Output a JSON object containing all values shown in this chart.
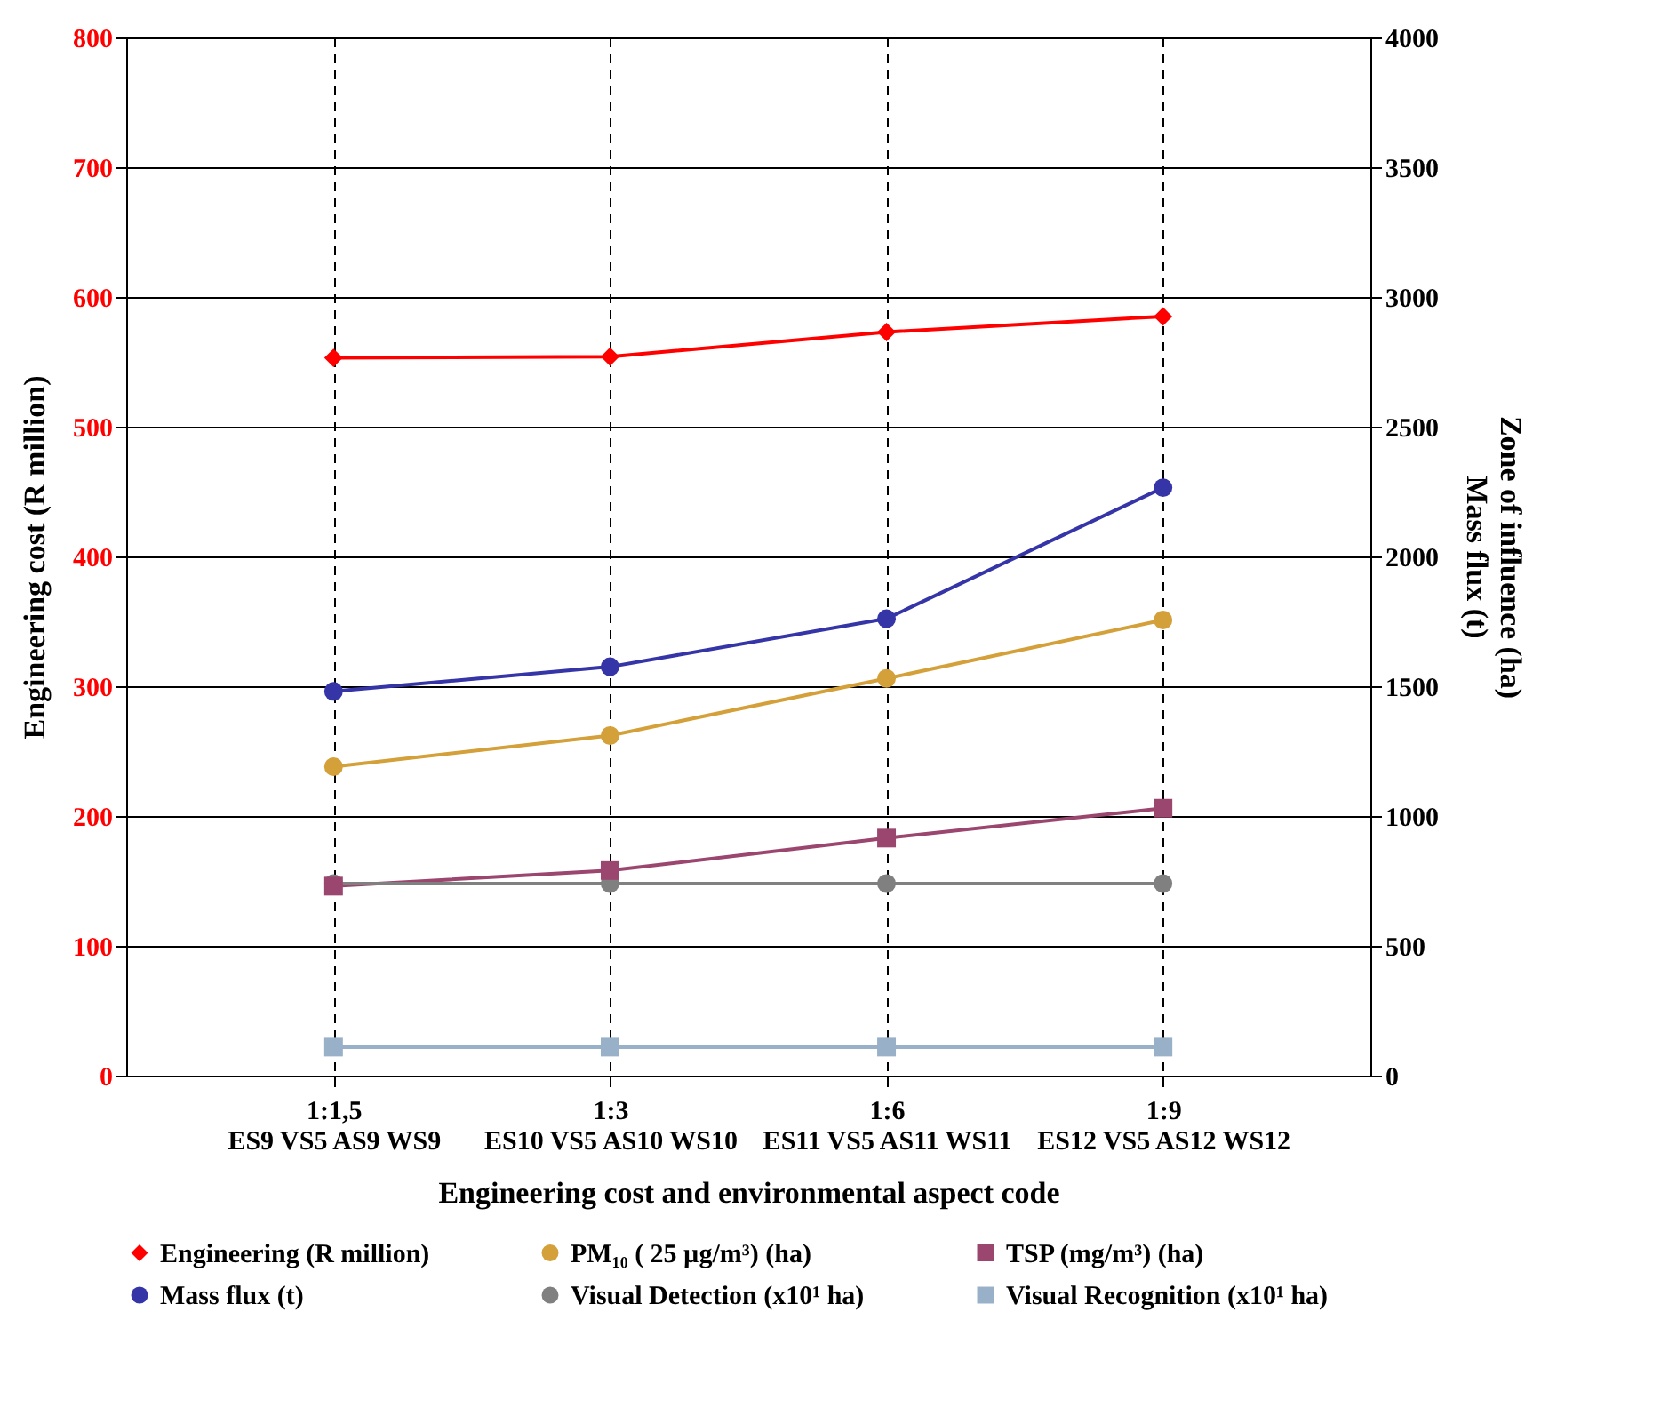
{
  "chart_data": {
    "type": "line",
    "xlabel": "Engineering cost and environmental aspect code",
    "ylabel": "Engineering cost (R million)",
    "y2label": "Zone of influence (ha)\nMass flux (t)",
    "categories": [
      "1:1,5\nES9 VS5 AS9 WS9",
      "1:3\nES10 VS5 AS10 WS10",
      "1:6\nES11 VS5 AS11 WS11",
      "1:9\nES12 VS5 AS12 WS12"
    ],
    "series": [
      {
        "name": "Engineering (R million)",
        "color": "#ff0000",
        "marker": "diamond",
        "values": [
          553,
          554,
          573,
          585
        ]
      },
      {
        "name": "PM₁₀ ( 25 µg/m³) (ha)",
        "color": "#d4a03a",
        "marker": "circle",
        "axis": "y2",
        "values": [
          1190,
          1310,
          1530,
          1755
        ]
      },
      {
        "name": "TSP (mg/m³) (ha)",
        "color": "#9b466e",
        "marker": "square",
        "axis": "y2",
        "values": [
          730,
          790,
          915,
          1030
        ]
      },
      {
        "name": "Mass flux (t)",
        "color": "#3535a8",
        "marker": "circle",
        "axis": "y2",
        "values": [
          1480,
          1575,
          1760,
          2265
        ]
      },
      {
        "name": "Visual Detection (x10¹ ha)",
        "color": "#808080",
        "marker": "circle",
        "axis": "y2",
        "values": [
          740,
          740,
          740,
          740
        ]
      },
      {
        "name": "Visual Recognition (x10¹ ha)",
        "color": "#98b0c8",
        "marker": "square",
        "axis": "y2",
        "values": [
          110,
          110,
          110,
          110
        ]
      }
    ],
    "ylim": [
      0,
      800
    ],
    "yticks": [
      0,
      100,
      200,
      300,
      400,
      500,
      600,
      700,
      800
    ],
    "y2lim": [
      0,
      4000
    ],
    "y2ticks": [
      0,
      500,
      1000,
      1500,
      2000,
      2500,
      3000,
      3500,
      4000
    ],
    "grid": true,
    "legend": "bottom"
  }
}
